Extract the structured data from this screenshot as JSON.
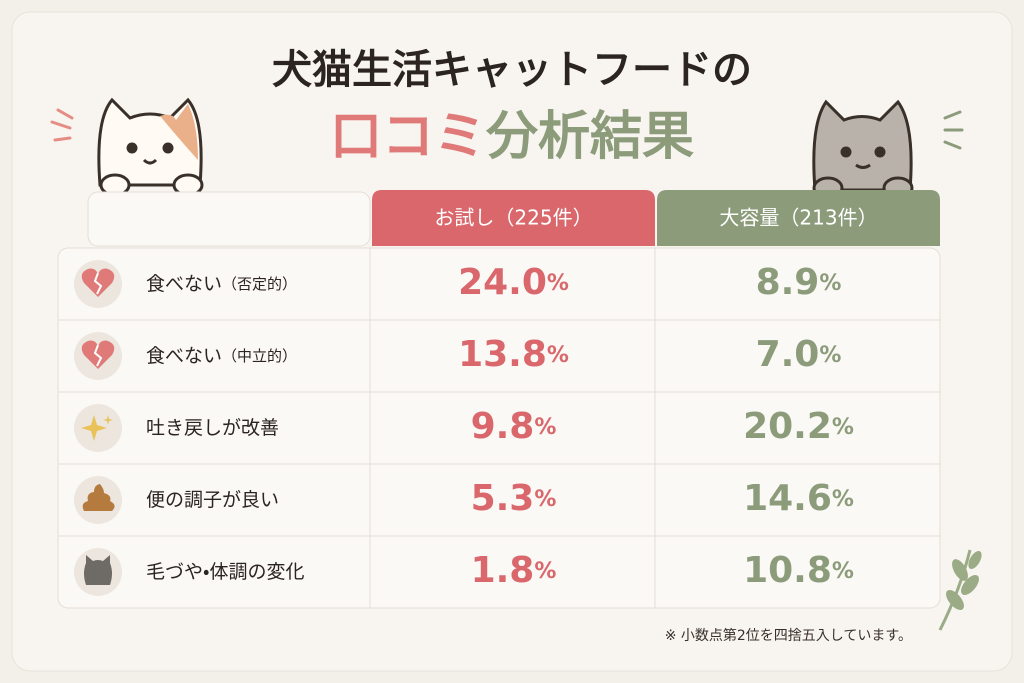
{
  "title": {
    "line1": "犬猫生活キャットフードの",
    "line2a": "口コミ",
    "line2b": "分析結果"
  },
  "table": {
    "headers": [
      "お試し（225件）",
      "大容量（213件）"
    ],
    "unit": "%",
    "rows": [
      {
        "label": "食べない",
        "sub": "（否定的）",
        "values": [
          "24.0",
          "8.9"
        ]
      },
      {
        "label": "食べない",
        "sub": "（中立的）",
        "values": [
          "13.8",
          "7.0"
        ]
      },
      {
        "label": "吐き戻しが改善",
        "sub": null,
        "values": [
          "9.8",
          "20.2"
        ]
      },
      {
        "label": "便の調子が良い",
        "sub": null,
        "values": [
          "5.3",
          "14.6"
        ]
      },
      {
        "label": "毛づや・体調の変化",
        "sub": null,
        "values": [
          "1.8",
          "10.8"
        ]
      }
    ]
  },
  "footnote": "※ 小数点第2位を四捨五入しています。"
}
